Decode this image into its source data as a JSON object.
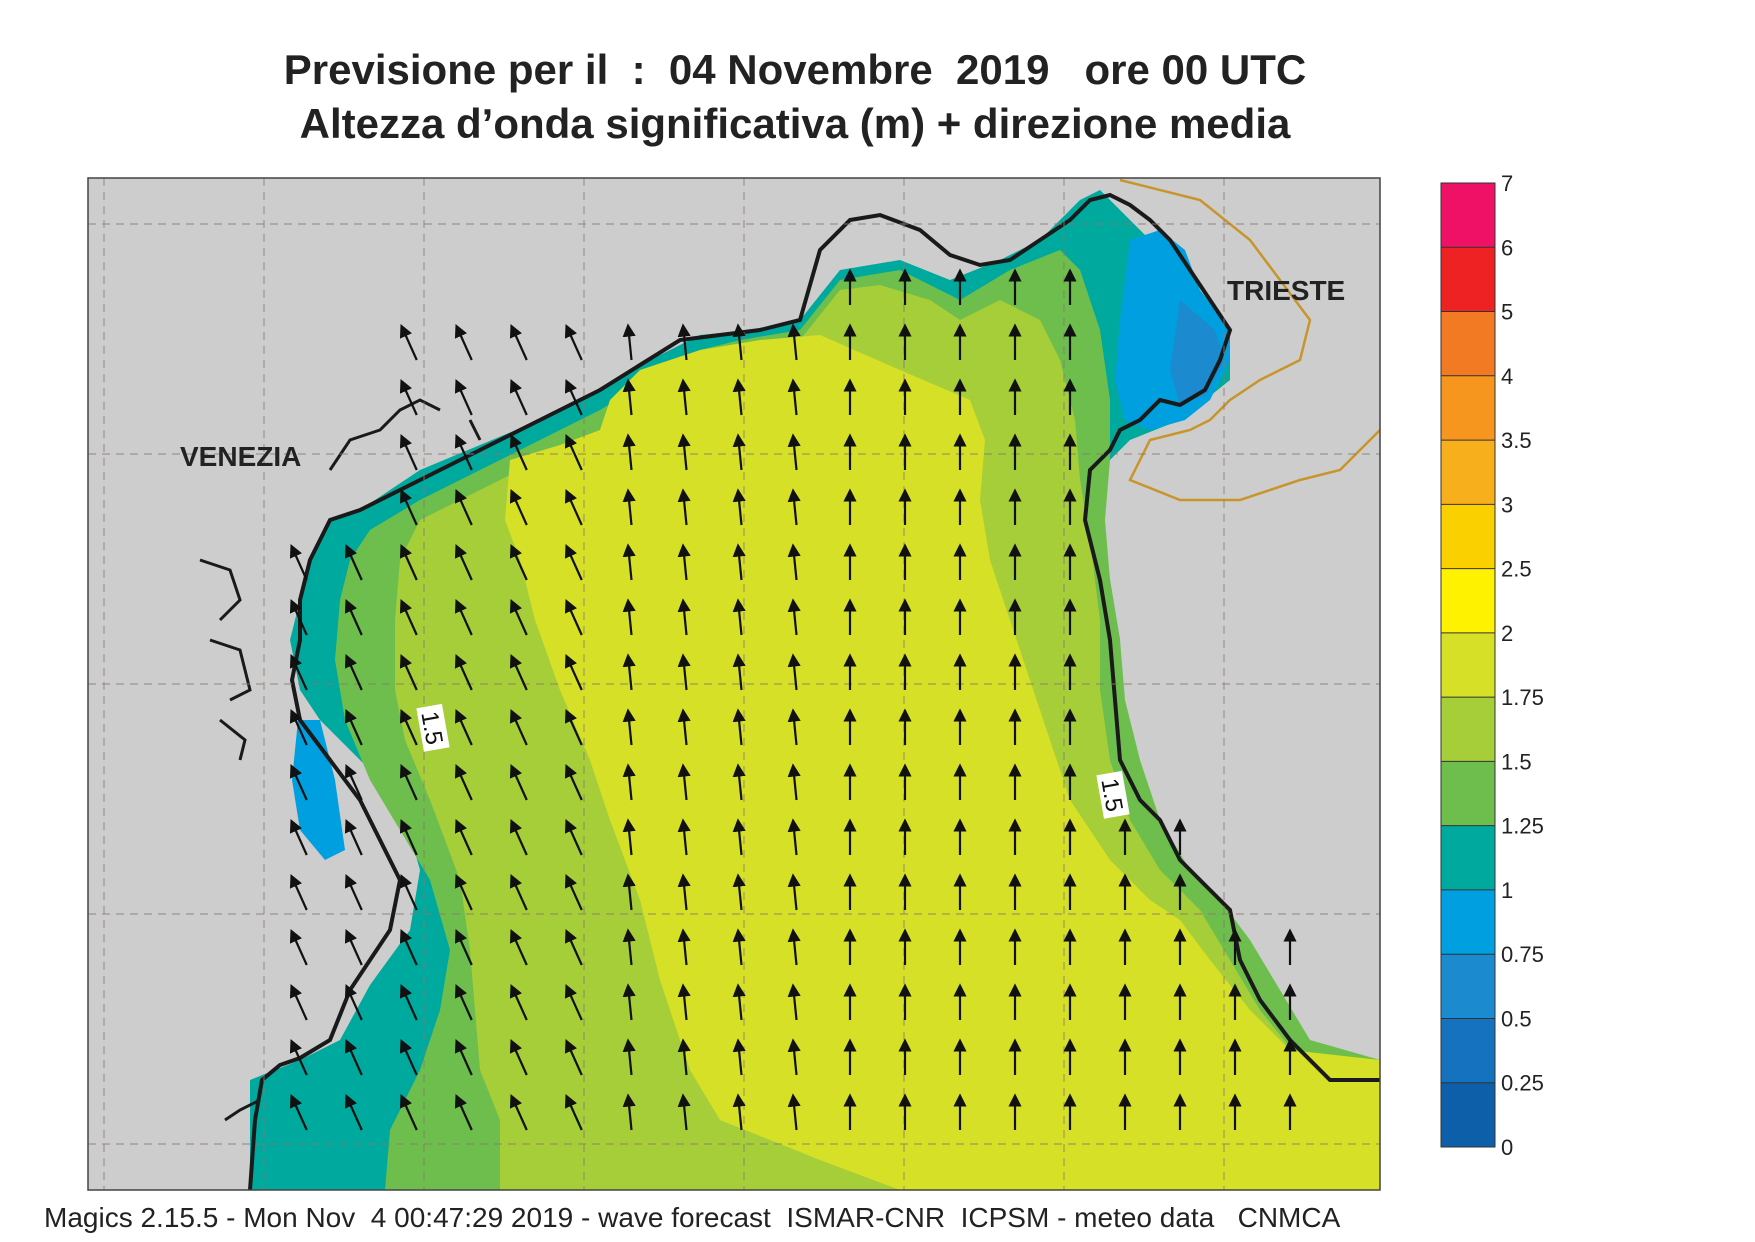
{
  "title_line1": "Previsione per il  :  04 Novembre  2019   ore 00 UTC",
  "title_line2": "Altezza d’onda significativa (m) + direzione media",
  "cities": {
    "venezia": "VENEZIA",
    "trieste": "TRIESTE"
  },
  "contour_labels": [
    "1.5",
    "1.5"
  ],
  "colorbar": {
    "unit": "m",
    "ticks": [
      "7",
      "6",
      "5",
      "4",
      "3.5",
      "3",
      "2.5",
      "2",
      "1.75",
      "1.5",
      "1.25",
      "1",
      "0.75",
      "0.5",
      "0.25",
      "0"
    ],
    "bands": [
      {
        "from": "6",
        "to": "7",
        "color": "#EE1166"
      },
      {
        "from": "5",
        "to": "6",
        "color": "#EE2222"
      },
      {
        "from": "4",
        "to": "5",
        "color": "#F27A22"
      },
      {
        "from": "3.5",
        "to": "4",
        "color": "#F7961E"
      },
      {
        "from": "3",
        "to": "3.5",
        "color": "#F7AF1C"
      },
      {
        "from": "2.5",
        "to": "3",
        "color": "#FAD000"
      },
      {
        "from": "2",
        "to": "2.5",
        "color": "#FFF200"
      },
      {
        "from": "1.75",
        "to": "2",
        "color": "#D6E026"
      },
      {
        "from": "1.5",
        "to": "1.75",
        "color": "#A6CE39"
      },
      {
        "from": "1.25",
        "to": "1.5",
        "color": "#6DBE4C"
      },
      {
        "from": "1",
        "to": "1.25",
        "color": "#00A99D"
      },
      {
        "from": "0.75",
        "to": "1",
        "color": "#00A0E0"
      },
      {
        "from": "0.5",
        "to": "0.75",
        "color": "#1C8ACF"
      },
      {
        "from": "0.25",
        "to": "0.5",
        "color": "#1572BE"
      },
      {
        "from": "0",
        "to": "0.25",
        "color": "#0D5FAA"
      }
    ]
  },
  "land_color": "#CDCDCD",
  "footer": "Magics 2.15.5 - Mon Nov  4 00:47:29 2019 - wave forecast  ISMAR-CNR  ICPSM - meteo data   CNMCA"
}
